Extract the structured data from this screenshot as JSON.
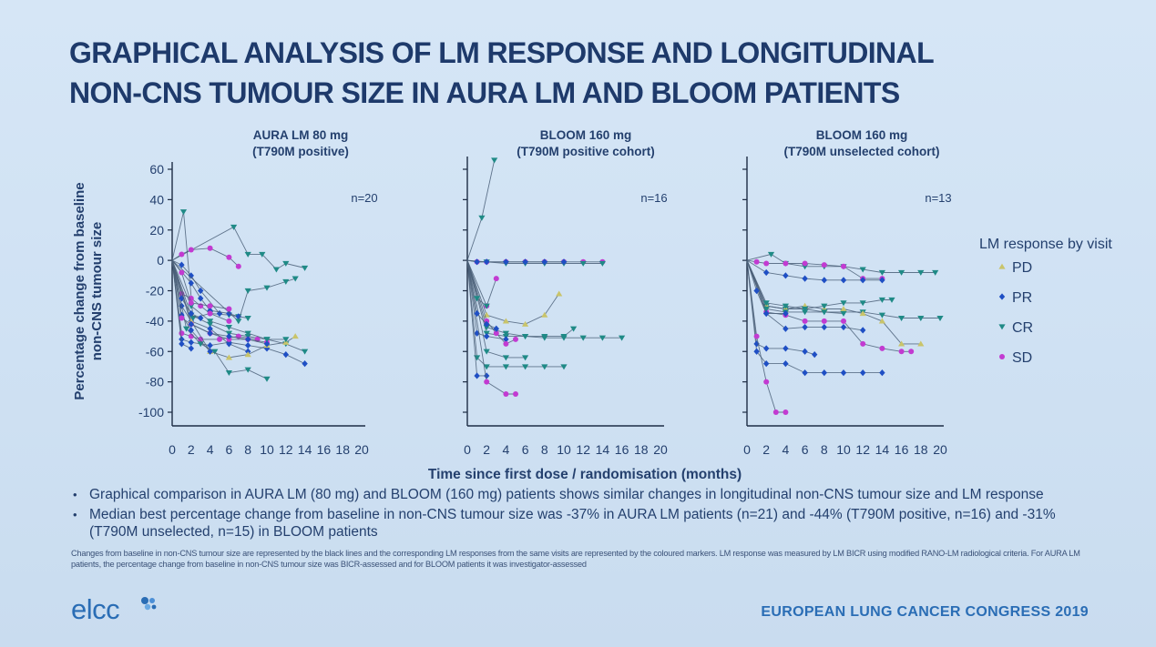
{
  "slide": {
    "title_line1": "GRAPHICAL ANALYSIS OF LM RESPONSE AND LONGITUDINAL",
    "title_line2": "NON-CNS TUMOUR SIZE IN AURA LM AND BLOOM PATIENTS",
    "bullets": [
      "Graphical comparison in AURA LM (80 mg) and BLOOM (160 mg) patients shows similar changes in longitudinal non-CNS tumour size and LM response",
      "Median best percentage change from baseline in non-CNS tumour size was -37% in AURA LM patients (n=21) and -44% (T790M positive, n=16) and -31% (T790M unselected, n=15) in BLOOM patients"
    ],
    "footnote": "Changes from baseline in non-CNS tumour size are represented by the black lines and the corresponding LM responses from the same visits are represented by the coloured markers. LM response was measured by LM BICR using modified RANO-LM radiological criteria. For AURA LM patients, the percentage change from baseline in non-CNS tumour size was BICR-assessed and for BLOOM patients it was investigator-assessed",
    "logo_text": "elcc",
    "congress": "EUROPEAN LUNG CANCER CONGRESS 2019"
  },
  "colors": {
    "title": "#1e3a6b",
    "text": "#24406e",
    "line": "#4a5f78",
    "PD": "#c9c46a",
    "PR": "#1f4fc4",
    "CR": "#1f8a86",
    "SD": "#c23bd1",
    "brand": "#2a6db5"
  },
  "chart_data": {
    "shared": {
      "y_axis_label": [
        "Percentage change from baseline",
        "non-CNS tumour size"
      ],
      "x_axis_label": "Time since first dose / randomisation (months)",
      "y_ticks": [
        60,
        40,
        20,
        0,
        -20,
        -40,
        -60,
        -80,
        -100
      ],
      "x_ticks": [
        0,
        2,
        4,
        6,
        8,
        10,
        12,
        14,
        16,
        18,
        20
      ],
      "legend_title": "LM response by visit",
      "legend": [
        {
          "key": "PD",
          "label": "PD",
          "marker": "triangle-up"
        },
        {
          "key": "PR",
          "label": "PR",
          "marker": "diamond"
        },
        {
          "key": "CR",
          "label": "CR",
          "marker": "triangle-down"
        },
        {
          "key": "SD",
          "label": "SD",
          "marker": "circle"
        }
      ]
    },
    "panels": [
      {
        "type": "line",
        "title": [
          "AURA LM 80 mg",
          "(T790M positive)"
        ],
        "n_label": "n=20",
        "ylim": [
          -100,
          60
        ],
        "xlim": [
          0,
          20
        ],
        "series": [
          {
            "r": "CR",
            "x": [
              0,
              1.2,
              2.2,
              4,
              6,
              7,
              8
            ],
            "y": [
              0,
              32,
              -38,
              -35,
              -36,
              -37,
              -38
            ]
          },
          {
            "r": "CR",
            "x": [
              0,
              6.5,
              8,
              9.5,
              11,
              12,
              14
            ],
            "y": [
              0,
              22,
              4,
              4,
              -6,
              -2,
              -5
            ]
          },
          {
            "r": "SD",
            "x": [
              0,
              1,
              2,
              4,
              6,
              7
            ],
            "y": [
              0,
              4,
              7,
              8,
              2,
              -4
            ]
          },
          {
            "r": "PR",
            "x": [
              0,
              1,
              2,
              3,
              5
            ],
            "y": [
              0,
              -3,
              -10,
              -20,
              -35
            ]
          },
          {
            "r": "PR",
            "x": [
              0,
              2,
              3,
              4,
              6,
              7
            ],
            "y": [
              0,
              -15,
              -25,
              -33,
              -35,
              -37
            ]
          },
          {
            "r": "CR",
            "x": [
              0,
              7,
              8,
              10,
              12,
              13
            ],
            "y": [
              0,
              -40,
              -20,
              -18,
              -14,
              -12
            ]
          },
          {
            "r": "SD",
            "x": [
              0,
              1,
              2,
              3,
              4,
              6
            ],
            "y": [
              0,
              -22,
              -25,
              -30,
              -35,
              -40
            ]
          },
          {
            "r": "PR",
            "x": [
              0,
              1,
              2,
              4,
              6,
              8,
              10,
              12,
              14
            ],
            "y": [
              0,
              -52,
              -54,
              -56,
              -54,
              -56,
              -58,
              -62,
              -68
            ]
          },
          {
            "r": "CR",
            "x": [
              0,
              2,
              4,
              6,
              8,
              10,
              12,
              14
            ],
            "y": [
              0,
              -36,
              -42,
              -48,
              -50,
              -52,
              -55,
              -60
            ]
          },
          {
            "r": "PR",
            "x": [
              0,
              1,
              2,
              4,
              6,
              8
            ],
            "y": [
              0,
              -30,
              -40,
              -45,
              -55,
              -60
            ]
          },
          {
            "r": "SD",
            "x": [
              0,
              1,
              2,
              3,
              5,
              7,
              9
            ],
            "y": [
              0,
              -48,
              -50,
              -52,
              -52,
              -50,
              -52
            ]
          },
          {
            "r": "CR",
            "x": [
              0,
              1.5,
              3,
              4.5,
              6,
              8,
              10
            ],
            "y": [
              0,
              -45,
              -55,
              -60,
              -74,
              -72,
              -78
            ]
          },
          {
            "r": "PD",
            "x": [
              0,
              2,
              4,
              6,
              8,
              10,
              12,
              13
            ],
            "y": [
              0,
              -40,
              -60,
              -64,
              -62,
              -56,
              -54,
              -50
            ]
          },
          {
            "r": "PR",
            "x": [
              0,
              1,
              2,
              4
            ],
            "y": [
              0,
              -36,
              -46,
              -60
            ]
          },
          {
            "r": "SD",
            "x": [
              0,
              1,
              2,
              4,
              6,
              8,
              10
            ],
            "y": [
              0,
              -38,
              -42,
              -48,
              -52,
              -52,
              -54
            ]
          },
          {
            "r": "CR",
            "x": [
              0,
              2,
              4,
              6,
              8,
              10,
              12
            ],
            "y": [
              0,
              -30,
              -40,
              -44,
              -48,
              -52,
              -52
            ]
          },
          {
            "r": "PR",
            "x": [
              0,
              1,
              2,
              3
            ],
            "y": [
              0,
              -25,
              -35,
              -38
            ]
          },
          {
            "r": "SD",
            "x": [
              0,
              1,
              2,
              4,
              6
            ],
            "y": [
              0,
              -8,
              -28,
              -30,
              -32
            ]
          },
          {
            "r": "PR",
            "x": [
              0,
              2,
              4,
              6,
              8,
              10
            ],
            "y": [
              0,
              -42,
              -48,
              -50,
              -52,
              -55
            ]
          },
          {
            "r": "PR",
            "x": [
              0,
              1,
              2
            ],
            "y": [
              0,
              -55,
              -58
            ]
          }
        ]
      },
      {
        "type": "line",
        "title": [
          "BLOOM 160 mg",
          "(T790M positive cohort)"
        ],
        "n_label": "n=16",
        "ylim": [
          -100,
          60
        ],
        "xlim": [
          0,
          20
        ],
        "series": [
          {
            "r": "CR",
            "x": [
              0,
              1.5,
              2.8
            ],
            "y": [
              0,
              28,
              66
            ]
          },
          {
            "r": "SD",
            "x": [
              0,
              1,
              2,
              4,
              6,
              8,
              10,
              12,
              14
            ],
            "y": [
              0,
              -1,
              -1,
              -1,
              -1,
              -1,
              -1,
              -1,
              -1
            ]
          },
          {
            "r": "CR",
            "x": [
              0,
              2,
              4,
              6,
              8,
              10,
              12,
              14
            ],
            "y": [
              0,
              -1,
              -2,
              -2,
              -2,
              -2,
              -2,
              -2
            ]
          },
          {
            "r": "PR",
            "x": [
              0,
              1,
              2,
              4,
              6,
              8,
              10
            ],
            "y": [
              0,
              -1,
              -1,
              -1,
              -1,
              -1,
              -1
            ]
          },
          {
            "r": "PD",
            "x": [
              0,
              2,
              4,
              6,
              8,
              9.5
            ],
            "y": [
              0,
              -36,
              -40,
              -42,
              -36,
              -22
            ]
          },
          {
            "r": "SD",
            "x": [
              0,
              2,
              3
            ],
            "y": [
              0,
              -30,
              -12
            ]
          },
          {
            "r": "CR",
            "x": [
              0,
              2,
              4,
              6,
              8,
              10,
              12,
              14,
              16
            ],
            "y": [
              0,
              -48,
              -50,
              -50,
              -51,
              -51,
              -51,
              -51,
              -51
            ]
          },
          {
            "r": "CR",
            "x": [
              0,
              2,
              4,
              6,
              8,
              10,
              11
            ],
            "y": [
              0,
              -44,
              -48,
              -50,
              -50,
              -50,
              -45
            ]
          },
          {
            "r": "PR",
            "x": [
              0,
              1,
              2,
              4
            ],
            "y": [
              0,
              -48,
              -50,
              -52
            ]
          },
          {
            "r": "SD",
            "x": [
              0,
              2,
              3,
              4,
              5
            ],
            "y": [
              0,
              -40,
              -48,
              -55,
              -52
            ]
          },
          {
            "r": "CR",
            "x": [
              0,
              1,
              2,
              4,
              6,
              8,
              10
            ],
            "y": [
              0,
              -64,
              -70,
              -70,
              -70,
              -70,
              -70
            ]
          },
          {
            "r": "CR",
            "x": [
              0,
              2,
              4,
              6
            ],
            "y": [
              0,
              -60,
              -64,
              -64
            ]
          },
          {
            "r": "PR",
            "x": [
              0,
              1,
              2
            ],
            "y": [
              0,
              -76,
              -76
            ]
          },
          {
            "r": "SD",
            "x": [
              0,
              2,
              4,
              5
            ],
            "y": [
              0,
              -80,
              -88,
              -88
            ]
          },
          {
            "r": "PR",
            "x": [
              0,
              1,
              2,
              3
            ],
            "y": [
              0,
              -35,
              -42,
              -45
            ]
          },
          {
            "r": "CR",
            "x": [
              0,
              1,
              2
            ],
            "y": [
              0,
              -25,
              -30
            ]
          }
        ]
      },
      {
        "type": "line",
        "title": [
          "BLOOM 160 mg",
          "(T790M unselected cohort)"
        ],
        "n_label": "n=13",
        "ylim": [
          -100,
          60
        ],
        "xlim": [
          0,
          20
        ],
        "series": [
          {
            "r": "CR",
            "x": [
              0,
              2.5,
              4,
              6,
              8,
              10,
              12,
              14,
              16,
              18,
              19.5
            ],
            "y": [
              0,
              4,
              -2,
              -4,
              -4,
              -4,
              -6,
              -8,
              -8,
              -8,
              -8
            ]
          },
          {
            "r": "SD",
            "x": [
              0,
              1,
              2,
              4,
              6,
              8,
              10,
              12,
              14
            ],
            "y": [
              0,
              -1,
              -2,
              -2,
              -2,
              -3,
              -4,
              -12,
              -12
            ]
          },
          {
            "r": "PR",
            "x": [
              0,
              2,
              4,
              6,
              8,
              10,
              12,
              14
            ],
            "y": [
              0,
              -8,
              -10,
              -12,
              -13,
              -13,
              -13,
              -13
            ]
          },
          {
            "r": "CR",
            "x": [
              0,
              2,
              4,
              6,
              8,
              10,
              12,
              14,
              16,
              18,
              20
            ],
            "y": [
              0,
              -30,
              -32,
              -32,
              -34,
              -34,
              -34,
              -36,
              -38,
              -38,
              -38
            ]
          },
          {
            "r": "PD",
            "x": [
              0,
              2,
              4,
              6,
              8,
              10,
              12,
              14,
              16,
              18
            ],
            "y": [
              0,
              -30,
              -32,
              -30,
              -32,
              -32,
              -35,
              -40,
              -55,
              -55
            ]
          },
          {
            "r": "SD",
            "x": [
              0,
              2,
              4,
              6,
              8,
              10,
              12,
              14,
              16,
              17
            ],
            "y": [
              0,
              -34,
              -36,
              -40,
              -40,
              -40,
              -55,
              -58,
              -60,
              -60
            ]
          },
          {
            "r": "CR",
            "x": [
              0,
              2,
              4,
              6,
              8,
              10,
              12,
              14,
              15
            ],
            "y": [
              0,
              -28,
              -30,
              -32,
              -30,
              -28,
              -28,
              -26,
              -26
            ]
          },
          {
            "r": "PR",
            "x": [
              0,
              2,
              4,
              6,
              8,
              10,
              12
            ],
            "y": [
              0,
              -35,
              -45,
              -44,
              -44,
              -44,
              -46
            ]
          },
          {
            "r": "PR",
            "x": [
              0,
              1,
              2,
              4,
              6,
              8,
              10,
              12,
              14
            ],
            "y": [
              0,
              -60,
              -68,
              -68,
              -74,
              -74,
              -74,
              -74,
              -74
            ]
          },
          {
            "r": "PR",
            "x": [
              0,
              1,
              2,
              4,
              6,
              7
            ],
            "y": [
              0,
              -55,
              -58,
              -58,
              -60,
              -62
            ]
          },
          {
            "r": "SD",
            "x": [
              0,
              1,
              2,
              3,
              4
            ],
            "y": [
              0,
              -50,
              -80,
              -100,
              -100
            ]
          },
          {
            "r": "CR",
            "x": [
              0,
              2,
              4,
              6,
              8,
              10
            ],
            "y": [
              0,
              -32,
              -34,
              -34,
              -34,
              -35
            ]
          },
          {
            "r": "PR",
            "x": [
              0,
              1,
              2,
              4
            ],
            "y": [
              0,
              -20,
              -35,
              -35
            ]
          }
        ]
      }
    ]
  }
}
